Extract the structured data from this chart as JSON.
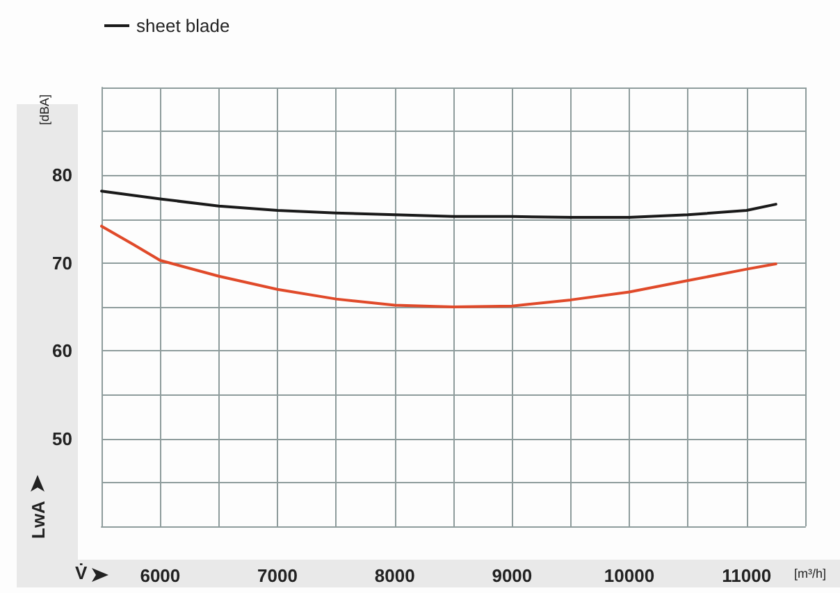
{
  "chart_data": {
    "type": "line",
    "xlabel": "V̇",
    "ylabel": "LwA",
    "annotations": [
      "[dBA]",
      "[m³/h]"
    ],
    "xlim": [
      5500,
      11500
    ],
    "xticks": [
      {
        "value": 5500,
        "label": null
      },
      6000,
      {
        "value": 6500,
        "label": null
      },
      7000,
      {
        "value": 7500,
        "label": null
      },
      8000,
      {
        "value": 8500,
        "label": null
      },
      9000,
      {
        "value": 9500,
        "label": null
      },
      10000,
      {
        "value": 10500,
        "label": null
      },
      11000,
      {
        "value": 11500,
        "label": null
      }
    ],
    "ylim": [
      40,
      90
    ],
    "yticks": [
      {
        "value": 40,
        "label": null
      },
      {
        "value": 45,
        "label": null
      },
      50,
      {
        "value": 55,
        "label": null
      },
      60,
      {
        "value": 65,
        "label": null
      },
      70,
      {
        "value": 75,
        "label": null
      },
      80,
      {
        "value": 85,
        "label": null
      },
      {
        "value": 90,
        "label": null
      }
    ],
    "grid": true,
    "legend": "top left",
    "marker": "none",
    "line_style": "solid",
    "series": [
      {
        "name": "sheet blade",
        "color": "#1a1a1a",
        "x": [
          5500,
          6000,
          6500,
          7000,
          7500,
          8000,
          8500,
          9000,
          9500,
          10000,
          10500,
          11000,
          11250
        ],
        "values": [
          78.2,
          77.3,
          76.5,
          76.0,
          75.7,
          75.5,
          75.3,
          75.3,
          75.2,
          75.2,
          75.5,
          76.0,
          76.7
        ]
      },
      {
        "color": "#e04a2a",
        "x": [
          5500,
          5773,
          6000,
          6500,
          7000,
          7500,
          8000,
          8500,
          9000,
          9500,
          10000,
          10500,
          11000,
          11250
        ],
        "values": [
          74.2,
          72.1,
          70.3,
          68.5,
          67.0,
          65.9,
          65.2,
          65.0,
          65.1,
          65.8,
          66.7,
          68.0,
          69.3,
          69.9
        ]
      }
    ]
  }
}
